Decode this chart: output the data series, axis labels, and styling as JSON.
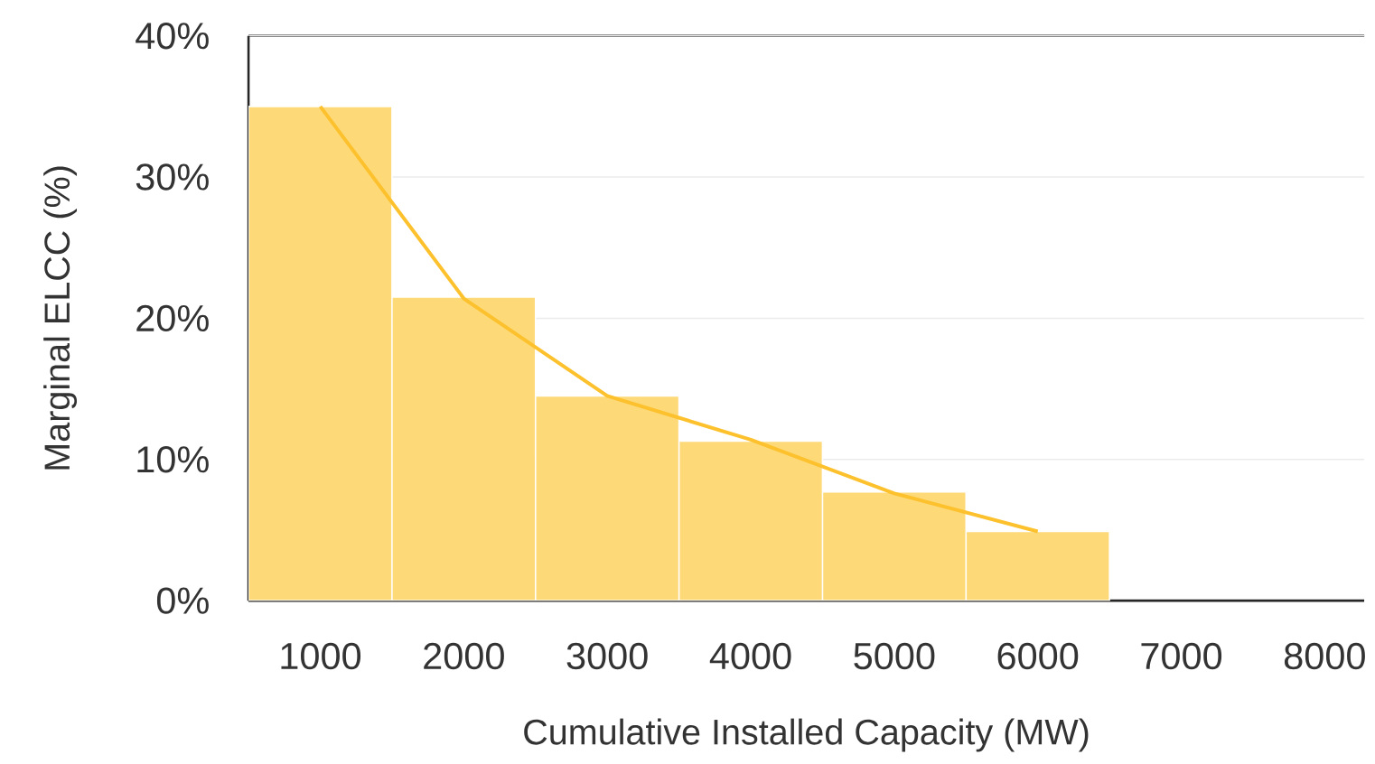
{
  "chart_data": {
    "type": "bar",
    "xlabel": "Cumulative Installed Capacity (MW)",
    "ylabel": "Marginal ELCC (%)",
    "categories": [
      "1000",
      "2000",
      "3000",
      "4000",
      "5000",
      "6000",
      "7000",
      "8000"
    ],
    "series": [
      {
        "color": "#fdd978",
        "values": [
          35,
          21.5,
          14.5,
          11.3,
          7.7,
          4.9,
          null,
          null
        ]
      },
      {
        "type": "line",
        "color": "#fcc12c",
        "values": [
          35,
          21.4,
          14.5,
          11.4,
          7.6,
          4.9,
          null,
          null
        ]
      }
    ],
    "ylim": [
      0,
      40
    ],
    "yticks": [
      {
        "value": 0,
        "label": "0%"
      },
      {
        "value": 10,
        "label": "10%"
      },
      {
        "value": 20,
        "label": "20%"
      },
      {
        "value": 30,
        "label": "30%"
      },
      {
        "value": 40,
        "label": "40%"
      }
    ],
    "grid": "y",
    "marker": "none",
    "line_style": "solid"
  }
}
